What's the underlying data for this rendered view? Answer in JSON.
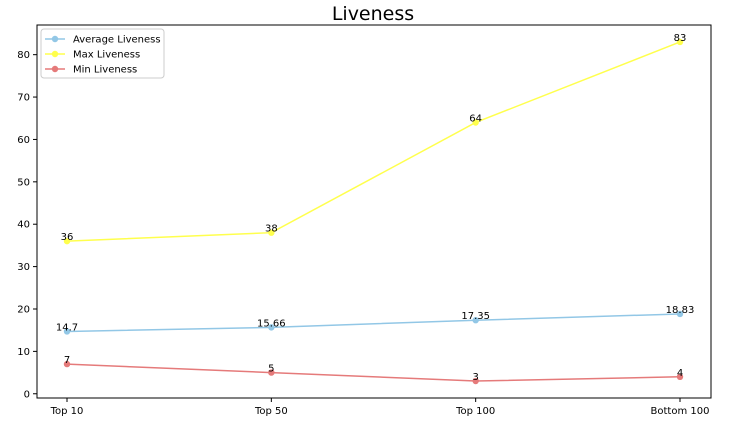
{
  "chart_data": {
    "type": "line",
    "title": "Liveness",
    "xlabel": "",
    "ylabel": "",
    "categories": [
      "Top 10",
      "Top 50",
      "Top 100",
      "Bottom 100"
    ],
    "ylim": [
      -1,
      87
    ],
    "yticks": [
      0,
      10,
      20,
      30,
      40,
      50,
      60,
      70,
      80
    ],
    "legend_position": "top-left",
    "grid": false,
    "series": [
      {
        "name": "Average Liveness",
        "values": [
          14.7,
          15.66,
          17.35,
          18.83
        ],
        "labels": [
          "14.7",
          "15.66",
          "17.35",
          "18.83"
        ],
        "color": "#92c7e6"
      },
      {
        "name": "Max Liveness",
        "values": [
          36,
          38,
          64,
          83
        ],
        "labels": [
          "36",
          "38",
          "64",
          "83"
        ],
        "color": "#ffff4d"
      },
      {
        "name": "Min Liveness",
        "values": [
          7,
          5,
          3,
          4
        ],
        "labels": [
          "7",
          "5",
          "3",
          "4"
        ],
        "color": "#e57a7a"
      }
    ]
  }
}
